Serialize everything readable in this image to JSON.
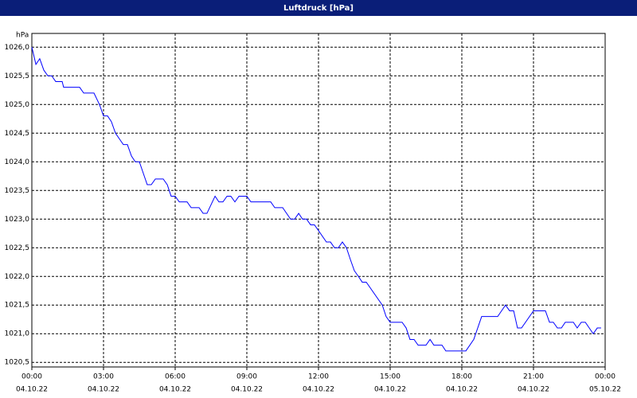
{
  "chart_data": {
    "type": "line",
    "title": "Luftdruck [hPa]",
    "y_label": "hPa",
    "x": [
      0,
      0.17,
      0.33,
      0.5,
      0.67,
      0.83,
      1.0,
      1.27,
      1.33,
      2.0,
      2.17,
      2.6,
      2.83,
      3.0,
      3.17,
      3.33,
      3.5,
      3.83,
      4.0,
      4.17,
      4.33,
      4.5,
      4.83,
      5.0,
      5.17,
      5.5,
      5.67,
      5.83,
      6.0,
      6.17,
      6.5,
      6.67,
      7.0,
      7.17,
      7.33,
      7.67,
      7.83,
      8.0,
      8.17,
      8.33,
      8.5,
      8.67,
      9.0,
      9.17,
      10.0,
      10.17,
      10.5,
      10.83,
      11.0,
      11.17,
      11.33,
      11.5,
      11.67,
      11.83,
      12.0,
      12.33,
      12.5,
      12.67,
      12.83,
      13.0,
      13.17,
      13.33,
      13.5,
      13.67,
      13.83,
      14.0,
      14.67,
      14.83,
      15.0,
      15.5,
      15.67,
      15.83,
      16.0,
      16.17,
      16.5,
      16.67,
      16.83,
      17.17,
      17.33,
      18.17,
      18.5,
      18.83,
      19.5,
      19.83,
      20.0,
      20.17,
      20.33,
      20.5,
      21.0,
      21.5,
      21.67,
      21.83,
      22.0,
      22.17,
      22.33,
      22.67,
      22.83,
      23.0,
      23.17,
      23.5,
      23.67,
      23.83
    ],
    "values": [
      1026.0,
      1025.7,
      1025.8,
      1025.6,
      1025.5,
      1025.5,
      1025.4,
      1025.4,
      1025.3,
      1025.3,
      1025.2,
      1025.2,
      1025.0,
      1024.8,
      1024.8,
      1024.7,
      1024.5,
      1024.3,
      1024.3,
      1024.1,
      1024.0,
      1024.0,
      1023.6,
      1023.6,
      1023.7,
      1023.7,
      1023.6,
      1023.4,
      1023.4,
      1023.3,
      1023.3,
      1023.2,
      1023.2,
      1023.1,
      1023.1,
      1023.4,
      1023.3,
      1023.3,
      1023.4,
      1023.4,
      1023.3,
      1023.4,
      1023.4,
      1023.3,
      1023.3,
      1023.2,
      1023.2,
      1023.0,
      1023.0,
      1023.1,
      1023.0,
      1023.0,
      1022.9,
      1022.9,
      1022.8,
      1022.6,
      1022.6,
      1022.5,
      1022.5,
      1022.6,
      1022.5,
      1022.3,
      1022.1,
      1022.0,
      1021.9,
      1021.9,
      1021.5,
      1021.3,
      1021.2,
      1021.2,
      1021.1,
      1020.9,
      1020.9,
      1020.8,
      1020.8,
      1020.9,
      1020.8,
      1020.8,
      1020.7,
      1020.7,
      1020.9,
      1021.3,
      1021.3,
      1021.5,
      1021.4,
      1021.4,
      1021.1,
      1021.1,
      1021.4,
      1021.4,
      1021.2,
      1021.2,
      1021.1,
      1021.1,
      1021.2,
      1021.2,
      1021.1,
      1021.2,
      1021.2,
      1021.0,
      1021.1,
      1021.1
    ],
    "color": "#0000ff",
    "xlim": [
      0,
      24
    ],
    "xticks": [
      {
        "value": 0,
        "label": "00:00"
      },
      {
        "value": 3,
        "label": "03:00"
      },
      {
        "value": 6,
        "label": "06:00"
      },
      {
        "value": 9,
        "label": "09:00"
      },
      {
        "value": 12,
        "label": "12:00"
      },
      {
        "value": 15,
        "label": "15:00"
      },
      {
        "value": 18,
        "label": "18:00"
      },
      {
        "value": 21,
        "label": "21:00"
      },
      {
        "value": 24,
        "label": "00:00"
      }
    ],
    "xtick_dates": [
      "04.10.22",
      "04.10.22",
      "04.10.22",
      "04.10.22",
      "04.10.22",
      "04.10.22",
      "04.10.22",
      "04.10.22",
      "05.10.22"
    ],
    "ylim": [
      1020.42,
      1026.24
    ],
    "yticks": [
      {
        "value": 1020.5,
        "label": "1020,5"
      },
      {
        "value": 1021,
        "label": "1021,0"
      },
      {
        "value": 1021.5,
        "label": "1021,5"
      },
      {
        "value": 1022,
        "label": "1022,0"
      },
      {
        "value": 1022.5,
        "label": "1022,5"
      },
      {
        "value": 1023,
        "label": "1023,0"
      },
      {
        "value": 1023.5,
        "label": "1023,5"
      },
      {
        "value": 1024,
        "label": "1024,0"
      },
      {
        "value": 1024.5,
        "label": "1024,5"
      },
      {
        "value": 1025,
        "label": "1025,0"
      },
      {
        "value": 1025.5,
        "label": "1025,5"
      },
      {
        "value": 1026,
        "label": "1026,0"
      }
    ],
    "grid": true
  }
}
